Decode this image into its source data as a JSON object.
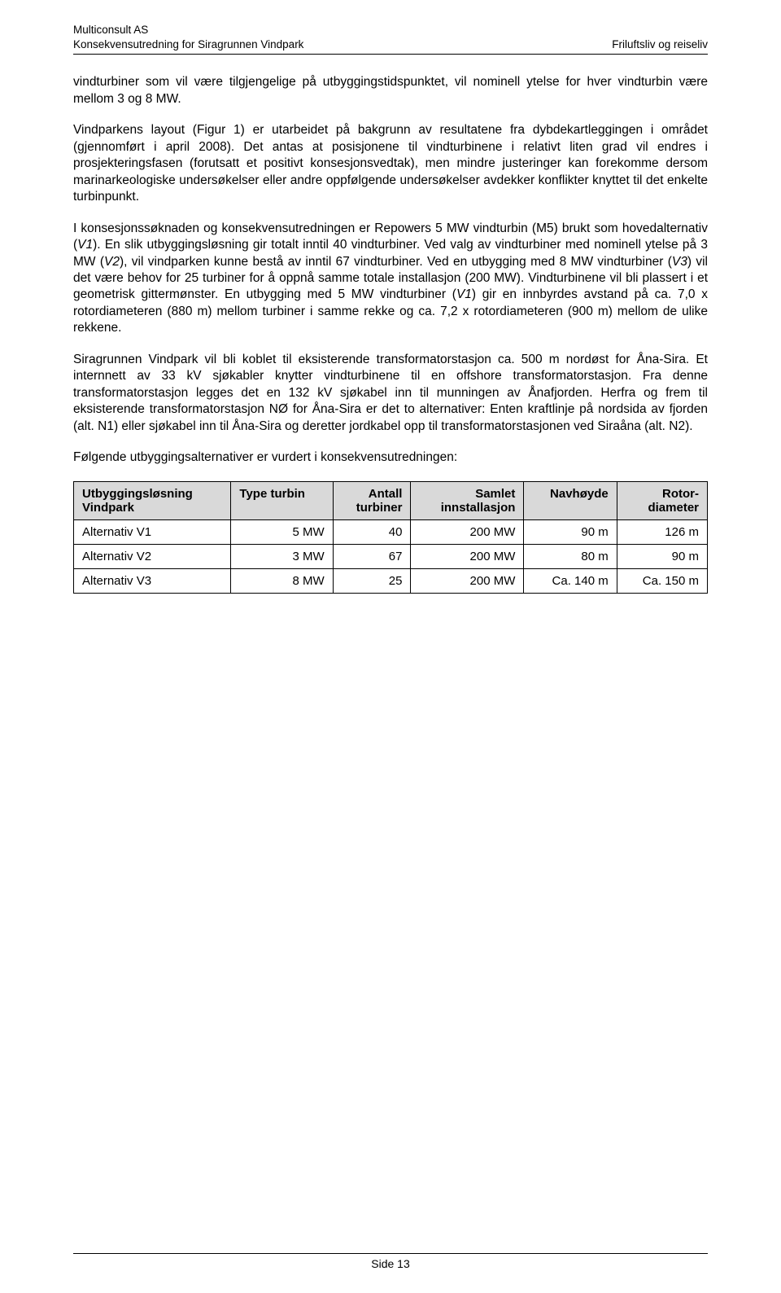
{
  "header": {
    "left_line1": "Multiconsult AS",
    "left_line2": "Konsekvensutredning for Siragrunnen Vindpark",
    "right_line": "Friluftsliv og reiseliv"
  },
  "paragraphs": {
    "p1a": "vindturbiner som vil være tilgjengelige på utbyggingstidspunktet, vil nominell ytelse for hver vindturbin være mellom 3 og 8 MW.",
    "p2a": "Vindparkens layout (Figur 1) er utarbeidet på bakgrunn av resultatene fra dybdekartleggingen i området (gjennomført i april 2008). Det antas at posisjonene til vindturbinene i relativt liten grad vil endres i prosjekteringsfasen (forutsatt et positivt konsesjonsvedtak), men mindre justeringer kan forekomme dersom marinarkeologiske undersøkelser eller andre oppfølgende undersøkelser avdekker konflikter knyttet til det enkelte turbinpunkt.",
    "p3_1": "I konsesjonssøknaden og konsekvensutredningen er Repowers 5 MW vindturbin (M5) brukt som hovedalternativ (",
    "p3_v1": "V1",
    "p3_2": "). En slik utbyggingsløsning gir totalt inntil 40 vindturbiner. Ved valg av vindturbiner med nominell ytelse på 3 MW (",
    "p3_v2": "V2",
    "p3_3": "), vil vindparken kunne bestå av inntil 67 vindturbiner. Ved en utbygging med 8 MW vindturbiner (",
    "p3_v3": "V3",
    "p3_4": ") vil det være behov for 25 turbiner for å oppnå samme totale installasjon (200 MW). Vindturbinene vil bli plassert i et geometrisk gittermønster. En utbygging med 5 MW vindturbiner (",
    "p3_v1b": "V1",
    "p3_5": ") gir en innbyrdes avstand på ca. 7,0 x rotordiameteren (880 m) mellom turbiner i samme rekke og ca. 7,2 x rotordiameteren (900 m) mellom de ulike rekkene.",
    "p4": "Siragrunnen Vindpark vil bli koblet til eksisterende transformatorstasjon ca. 500 m nordøst for Åna-Sira. Et internnett av 33 kV sjøkabler knytter vindturbinene til en offshore transformatorstasjon. Fra denne transformatorstasjon legges det en 132 kV sjøkabel inn til munningen av Ånafjorden. Herfra og frem til eksisterende transformatorstasjon NØ for Åna-Sira er det to alternativer: Enten kraftlinje på nordsida av fjorden (alt. N1) eller sjøkabel inn til Åna-Sira og deretter jordkabel opp til transformatorstasjonen ved Siraåna (alt. N2).",
    "p5": "Følgende utbyggingsalternativer er vurdert i konsekvensutredningen:"
  },
  "table": {
    "headers": {
      "c0a": "Utbyggingsløsning",
      "c0b": "Vindpark",
      "c1": "Type turbin",
      "c2a": "Antall",
      "c2b": "turbiner",
      "c3a": "Samlet",
      "c3b": "innstallasjon",
      "c4": "Navhøyde",
      "c5a": "Rotor-",
      "c5b": "diameter"
    },
    "rows": [
      {
        "c0": "Alternativ V1",
        "c1": "5 MW",
        "c2": "40",
        "c3": "200 MW",
        "c4": "90 m",
        "c5": "126 m"
      },
      {
        "c0": "Alternativ V2",
        "c1": "3 MW",
        "c2": "67",
        "c3": "200 MW",
        "c4": "80 m",
        "c5": "90 m"
      },
      {
        "c0": "Alternativ V3",
        "c1": "8 MW",
        "c2": "25",
        "c3": "200 MW",
        "c4": "Ca. 140 m",
        "c5": "Ca. 150 m"
      }
    ]
  },
  "footer": {
    "text": "Side 13"
  },
  "styles": {
    "header_bg": "#d9d9d9"
  }
}
